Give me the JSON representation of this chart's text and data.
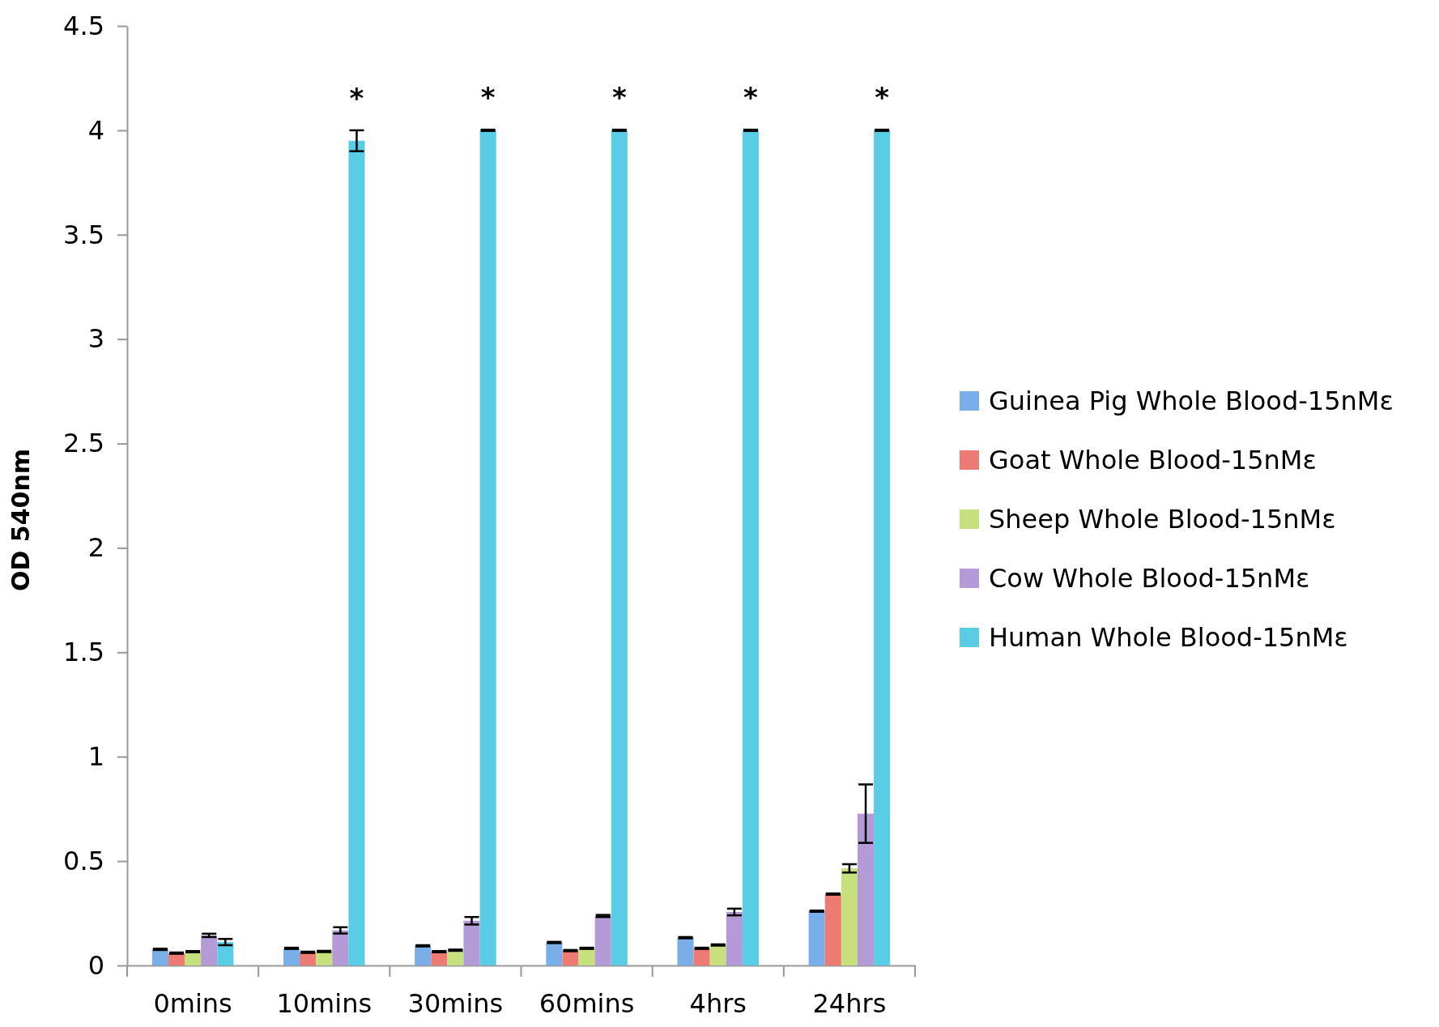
{
  "chart_data": {
    "type": "bar",
    "ylabel": "OD 540nm",
    "categories": [
      "0mins",
      "10mins",
      "30mins",
      "60mins",
      "4hrs",
      "24hrs"
    ],
    "series": [
      {
        "name": "Guinea Pig Whole Blood-15nMε",
        "color": "#7aaee8",
        "values": [
          0.077,
          0.082,
          0.094,
          0.11,
          0.133,
          0.26
        ],
        "errors": [
          0.003,
          0.003,
          0.003,
          0.003,
          0.003,
          0.003
        ]
      },
      {
        "name": "Goat Whole Blood-15nMε",
        "color": "#ee7a74",
        "values": [
          0.059,
          0.063,
          0.066,
          0.071,
          0.082,
          0.342
        ],
        "errors": [
          0.003,
          0.003,
          0.003,
          0.003,
          0.003,
          0.003
        ]
      },
      {
        "name": "Sheep Whole Blood-15nMε",
        "color": "#c6e07e",
        "values": [
          0.066,
          0.067,
          0.073,
          0.082,
          0.098,
          0.465
        ],
        "errors": [
          0.003,
          0.003,
          0.003,
          0.003,
          0.003,
          0.02
        ]
      },
      {
        "name": "Cow Whole Blood-15nMε",
        "color": "#b49ad6",
        "values": [
          0.144,
          0.168,
          0.214,
          0.237,
          0.256,
          0.727
        ],
        "errors": [
          0.008,
          0.015,
          0.018,
          0.005,
          0.016,
          0.14
        ]
      },
      {
        "name": "Human Whole Blood-15nMε",
        "color": "#5acde6",
        "values": [
          0.112,
          3.95,
          4.0,
          4.0,
          4.0,
          4.0
        ],
        "errors": [
          0.015,
          0.05,
          0.003,
          0.003,
          0.003,
          0.003
        ]
      }
    ],
    "ylim": [
      0,
      4.5
    ],
    "yticks": [
      0,
      0.5,
      1,
      1.5,
      2,
      2.5,
      3,
      3.5,
      4,
      4.5
    ],
    "grid": false,
    "legend": "right",
    "annotations": [
      "*",
      "*",
      "*",
      "*",
      "*"
    ]
  }
}
